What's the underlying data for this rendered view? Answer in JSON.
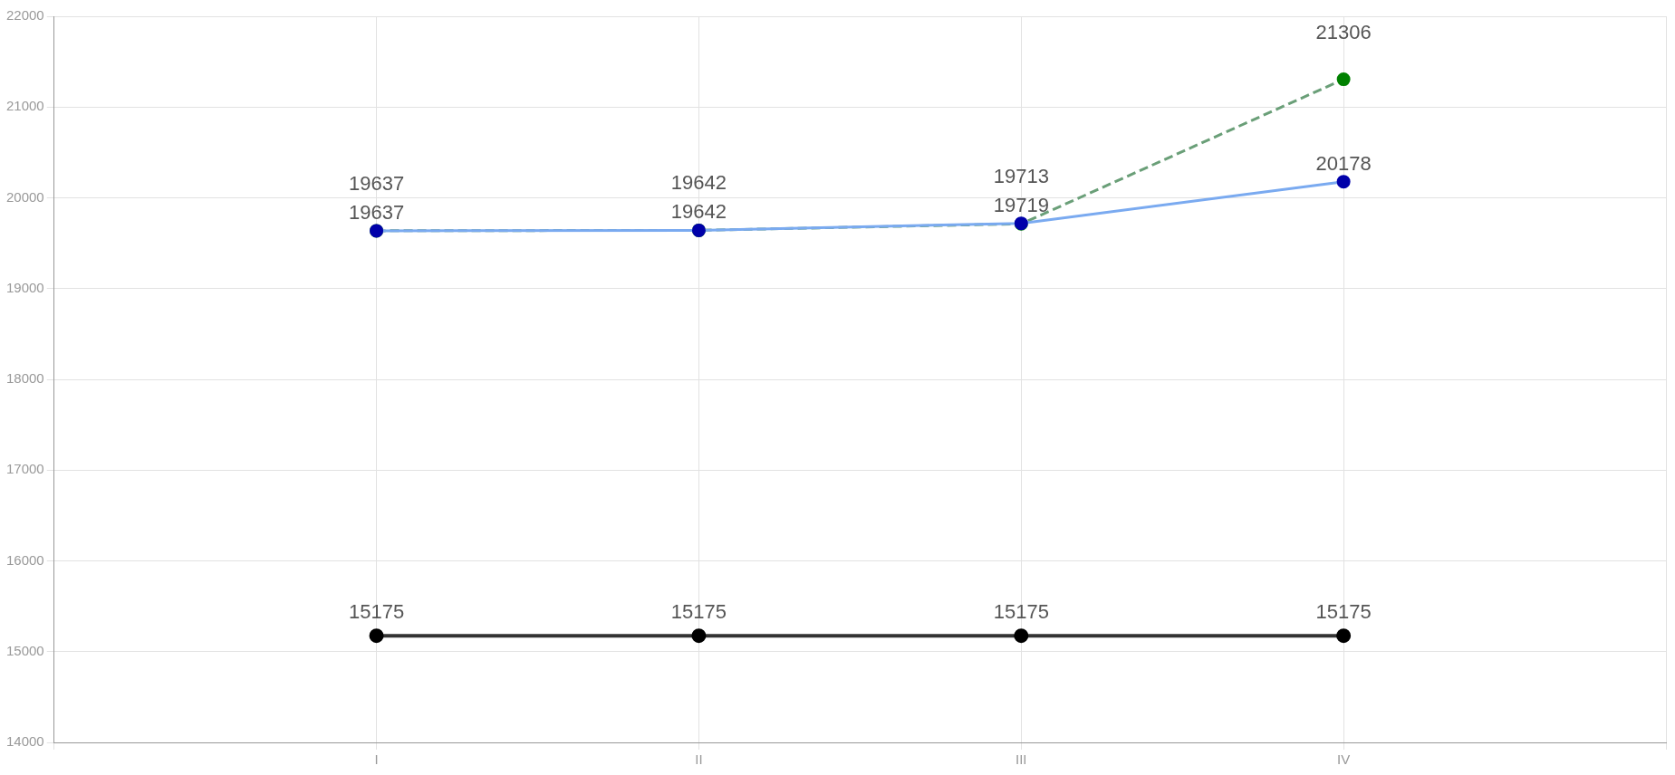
{
  "chart_data": {
    "type": "line",
    "categories": [
      "I",
      "II",
      "III",
      "IV"
    ],
    "series": [
      {
        "color": "#333333",
        "values": [
          15175,
          15175,
          15175,
          15175
        ],
        "line_style": "solid"
      },
      {
        "color": "#7aaaf0",
        "values": [
          19637,
          19642,
          19719,
          20178
        ],
        "line_style": "solid"
      },
      {
        "color": "#6a9f78",
        "values": [
          19637,
          19642,
          19713,
          21306
        ],
        "line_style": "dashed"
      }
    ],
    "ylim": [
      14000,
      22000
    ],
    "yticks": [
      14000,
      15000,
      16000,
      17000,
      18000,
      19000,
      20000,
      21000,
      22000
    ],
    "grid": true,
    "marker": "circle",
    "data_labels": true,
    "legend": false
  }
}
